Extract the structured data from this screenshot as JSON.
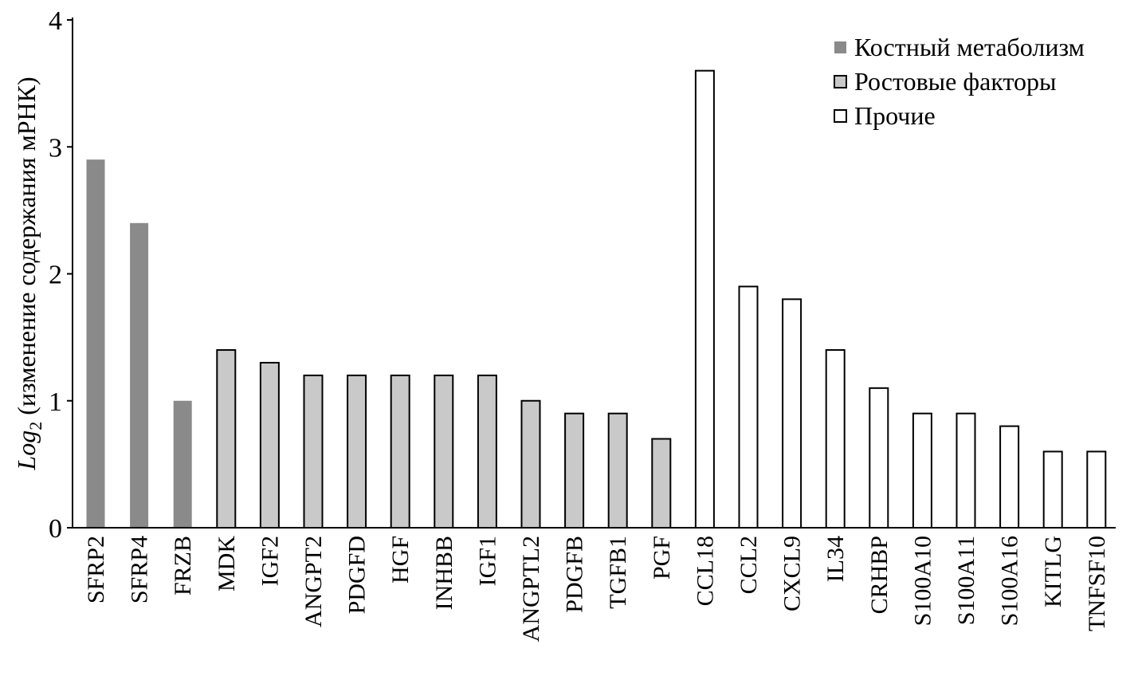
{
  "chart_data": {
    "type": "bar",
    "ylabel": {
      "main": "Log",
      "sub": "2",
      "rest": " (изменение содержания мРНК)"
    },
    "xlabel": "",
    "ylim": [
      0,
      4
    ],
    "yticks": [
      0,
      1,
      2,
      3,
      4
    ],
    "grid": false,
    "legend_placement": "top-right",
    "categories": [
      "SFRP2",
      "SFRP4",
      "FRZB",
      "MDK",
      "IGF2",
      "ANGPT2",
      "PDGFD",
      "HGF",
      "INHBB",
      "IGF1",
      "ANGPTL2",
      "PDGFB",
      "TGFB1",
      "PGF",
      "CCL18",
      "CCL2",
      "CXCL9",
      "IL34",
      "CRHBP",
      "S100A10",
      "S100A11",
      "S100A16",
      "KITLG",
      "TNFSF10"
    ],
    "values": [
      2.9,
      2.4,
      1.0,
      1.4,
      1.3,
      1.2,
      1.2,
      1.2,
      1.2,
      1.2,
      1.0,
      0.9,
      0.9,
      0.7,
      3.6,
      1.9,
      1.8,
      1.4,
      1.1,
      0.9,
      0.9,
      0.8,
      0.6,
      0.6
    ],
    "groups": [
      0,
      0,
      0,
      1,
      1,
      1,
      1,
      1,
      1,
      1,
      1,
      1,
      1,
      1,
      2,
      2,
      2,
      2,
      2,
      2,
      2,
      2,
      2,
      2
    ],
    "series": [
      {
        "name": "Костный метаболизм",
        "color": "#8a8a8a",
        "border": false
      },
      {
        "name": "Ростовые факторы",
        "color": "#c9c9c9",
        "border": true
      },
      {
        "name": "Прочие",
        "color": "#ffffff",
        "border": true
      }
    ]
  }
}
